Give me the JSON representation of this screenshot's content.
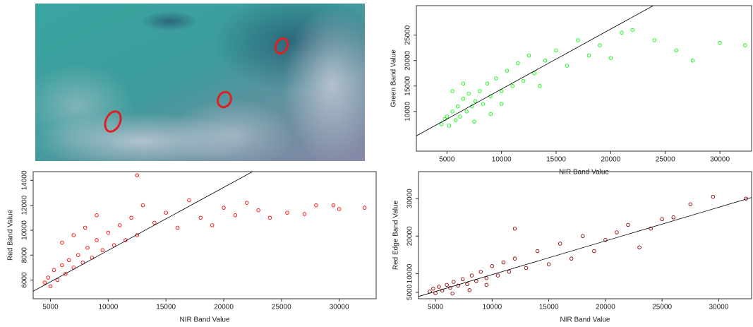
{
  "chart_data": [
    {
      "type": "scatter",
      "x_label": "NIR Band Value",
      "y_label": "Green Band Value",
      "xlim": [
        2200,
        32900
      ],
      "ylim": [
        2200,
        30800
      ],
      "xticks": [
        5000,
        10000,
        15000,
        20000,
        25000,
        30000
      ],
      "yticks": [
        10000,
        15000,
        20000,
        25000
      ],
      "series": [
        {
          "color": "#00ff00",
          "x": [
            4500,
            4800,
            5000,
            5200,
            5500,
            5800,
            6000,
            6200,
            6500,
            6800,
            7000,
            7300,
            7600,
            8000,
            8300,
            8700,
            9000,
            9500,
            10000,
            10500,
            11000,
            11500,
            12000,
            12500,
            13000,
            13500,
            14000,
            15000,
            16000,
            17000,
            18000,
            19000,
            20000,
            21000,
            22000,
            24000,
            26000,
            27500,
            30000,
            32300,
            5500,
            6500,
            7500,
            9000,
            10000
          ],
          "values": [
            7500,
            8500,
            9000,
            7200,
            10000,
            8300,
            11000,
            9000,
            12500,
            10000,
            13500,
            11000,
            12000,
            14000,
            11500,
            15500,
            13000,
            16500,
            14000,
            18000,
            15000,
            19500,
            16000,
            21000,
            17500,
            15000,
            20000,
            22000,
            19000,
            24000,
            21000,
            23000,
            20500,
            25500,
            26000,
            24000,
            22000,
            20000,
            23500,
            23000,
            14000,
            15500,
            8000,
            9500,
            11500
          ]
        }
      ],
      "trend": {
        "color": "#000000",
        "x": [
          2200,
          23900
        ],
        "values": [
          5200,
          30800
        ]
      }
    },
    {
      "type": "scatter",
      "x_label": "NIR Band Value",
      "y_label": "Red Band Value",
      "xlim": [
        3500,
        33200
      ],
      "ylim": [
        4500,
        14700
      ],
      "xticks": [
        5000,
        10000,
        15000,
        20000,
        25000,
        30000
      ],
      "yticks": [
        6000,
        8000,
        10000,
        12000,
        14000
      ],
      "series": [
        {
          "color": "#ff0000",
          "x": [
            4500,
            4800,
            5000,
            5300,
            5600,
            6000,
            6300,
            6600,
            7000,
            7400,
            7800,
            8200,
            8600,
            9000,
            9500,
            10000,
            10500,
            11000,
            11500,
            12000,
            12500,
            13000,
            14000,
            15000,
            16000,
            17000,
            18000,
            19000,
            20000,
            21000,
            22000,
            23000,
            24000,
            25500,
            27000,
            28000,
            29500,
            30000,
            32200,
            6000,
            7000,
            8000,
            9000,
            12500
          ],
          "values": [
            5800,
            6200,
            5500,
            6800,
            6000,
            7200,
            6500,
            7600,
            7000,
            8000,
            7400,
            8600,
            7800,
            9200,
            8400,
            9800,
            8800,
            10400,
            9200,
            11000,
            9600,
            12000,
            10600,
            11400,
            10200,
            12400,
            11000,
            10400,
            11800,
            11200,
            12200,
            11600,
            11000,
            11400,
            11300,
            12000,
            12000,
            11700,
            11800,
            9000,
            9600,
            10200,
            11200,
            14400
          ]
        }
      ],
      "trend": {
        "color": "#000000",
        "x": [
          3500,
          22500
        ],
        "values": [
          5100,
          14700
        ]
      }
    },
    {
      "type": "scatter",
      "x_label": "NIR Band Value",
      "y_label": "Red Edge Band Value",
      "xlim": [
        3500,
        32900
      ],
      "ylim": [
        3300,
        37200
      ],
      "xticks": [
        5000,
        10000,
        15000,
        20000,
        25000,
        30000
      ],
      "yticks": [
        5000,
        10000,
        20000,
        30000
      ],
      "series": [
        {
          "color": "#8b0000",
          "x": [
            4500,
            4800,
            5000,
            5300,
            5600,
            6000,
            6300,
            6600,
            7000,
            7400,
            7800,
            8200,
            8600,
            9000,
            9500,
            10000,
            10500,
            11000,
            11500,
            12000,
            13000,
            14000,
            15000,
            16000,
            17000,
            18000,
            19000,
            20000,
            21000,
            22000,
            23000,
            24000,
            25000,
            26000,
            27500,
            29500,
            32400,
            6500,
            8000,
            9500,
            12000
          ],
          "values": [
            5200,
            6000,
            4800,
            6500,
            5500,
            7000,
            6200,
            7800,
            6800,
            8500,
            7200,
            9500,
            8000,
            10500,
            8800,
            12000,
            9500,
            13000,
            10500,
            14000,
            11500,
            16000,
            12500,
            18000,
            14000,
            20000,
            16000,
            19000,
            21000,
            23000,
            17000,
            22000,
            24500,
            25000,
            28500,
            30500,
            30000,
            4700,
            5600,
            7000,
            22000
          ]
        }
      ],
      "trend": {
        "color": "#000000",
        "x": [
          3500,
          32900
        ],
        "values": [
          3900,
          30300
        ]
      }
    }
  ]
}
